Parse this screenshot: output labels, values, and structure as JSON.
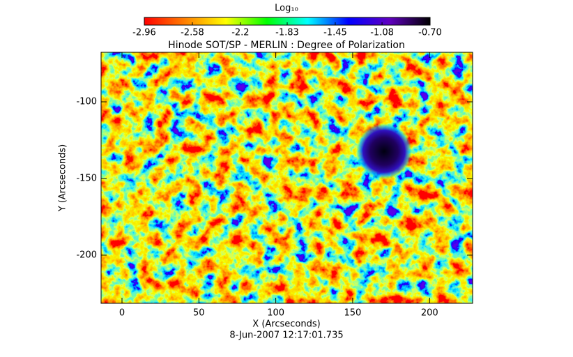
{
  "chart_data": {
    "type": "heatmap",
    "title": "Hinode SOT/SP - MERLIN : Degree of Polarization",
    "x_label": "X (Arcseconds)",
    "y_label": "Y (Arcseconds)",
    "footnote": "8-Jun-2007 12:17:01.735",
    "xlim": [
      -13.6,
      228
    ],
    "xticks": [
      0,
      50,
      100,
      150,
      200
    ],
    "ylim": [
      -231.4,
      -67.7
    ],
    "yticks": [
      -100,
      -150,
      -200
    ],
    "colorbar": {
      "label": "Log₁₀",
      "clim": [
        -2.96,
        -0.7
      ],
      "ticks": [
        -2.96,
        -2.58,
        -2.2,
        -1.83,
        -1.45,
        -1.08,
        {
          "value": -0.7,
          "label": "-0.70"
        }
      ],
      "colors": [
        "#ff0000",
        "#ff8000",
        "#ffff00",
        "#00ff00",
        "#00ffff",
        "#0000ff",
        "#6000c0",
        "#000000"
      ]
    }
  }
}
